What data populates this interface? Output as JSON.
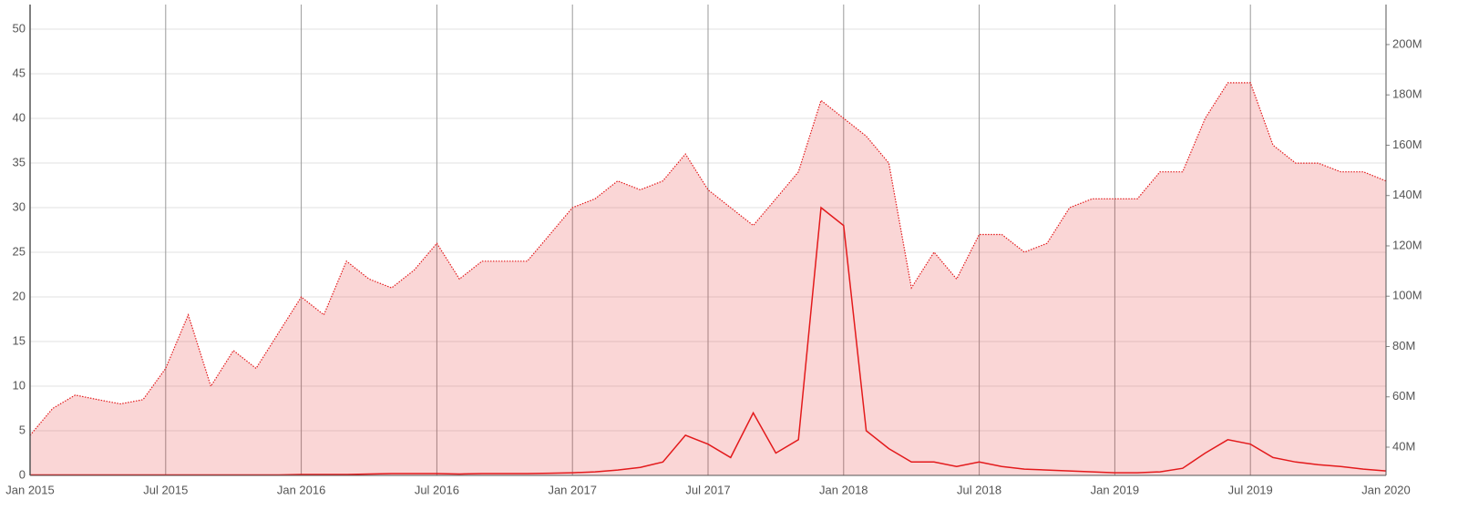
{
  "chart_data": {
    "type": "line",
    "x": [
      "2015-01",
      "2015-02",
      "2015-03",
      "2015-04",
      "2015-05",
      "2015-06",
      "2015-07",
      "2015-08",
      "2015-09",
      "2015-10",
      "2015-11",
      "2015-12",
      "2016-01",
      "2016-02",
      "2016-03",
      "2016-04",
      "2016-05",
      "2016-06",
      "2016-07",
      "2016-08",
      "2016-09",
      "2016-10",
      "2016-11",
      "2016-12",
      "2017-01",
      "2017-02",
      "2017-03",
      "2017-04",
      "2017-05",
      "2017-06",
      "2017-07",
      "2017-08",
      "2017-09",
      "2017-10",
      "2017-11",
      "2017-12",
      "2018-01",
      "2018-02",
      "2018-03",
      "2018-04",
      "2018-05",
      "2018-06",
      "2018-07",
      "2018-08",
      "2018-09",
      "2018-10",
      "2018-11",
      "2018-12",
      "2019-01",
      "2019-02",
      "2019-03",
      "2019-04",
      "2019-05",
      "2019-06",
      "2019-07",
      "2019-08",
      "2019-09",
      "2019-10",
      "2019-11",
      "2019-12",
      "2020-01"
    ],
    "series": [
      {
        "color": "#e31a1c",
        "style": "area",
        "axis": "y2",
        "values": [
          44700000,
          55400000,
          60700000,
          58900000,
          57200000,
          58900000,
          71300000,
          92600000,
          64200000,
          78400000,
          71300000,
          85500000,
          99700000,
          92600000,
          113900000,
          106800000,
          103300000,
          110400000,
          121000000,
          106800000,
          113900000,
          113900000,
          113900000,
          124500000,
          135200000,
          138700000,
          145800000,
          142300000,
          145800000,
          156500000,
          142300000,
          135200000,
          128100000,
          138700000,
          149400000,
          177800000,
          170700000,
          163600000,
          152900000,
          103300000,
          117500000,
          106800000,
          124500000,
          124500000,
          117500000,
          121000000,
          135200000,
          138700000,
          138700000,
          138700000,
          149400000,
          149400000,
          170700000,
          184800000,
          184800000,
          160000000,
          152900000,
          152900000,
          149400000,
          149400000,
          145800000
        ]
      },
      {
        "color": "#e31a1c",
        "style": "line",
        "values": [
          0.05,
          0.05,
          0.05,
          0.05,
          0.05,
          0.05,
          0.05,
          0.05,
          0.05,
          0.05,
          0.05,
          0.05,
          0.1,
          0.1,
          0.1,
          0.15,
          0.2,
          0.2,
          0.2,
          0.15,
          0.2,
          0.2,
          0.2,
          0.25,
          0.3,
          0.4,
          0.6,
          0.9,
          1.5,
          4.5,
          3.5,
          2.0,
          7.0,
          2.5,
          4.0,
          30,
          28,
          5,
          3,
          1.5,
          1.5,
          1,
          1.5,
          1,
          0.7,
          0.6,
          0.5,
          0.4,
          0.3,
          0.3,
          0.4,
          0.8,
          2.5,
          4.0,
          3.5,
          2,
          1.5,
          1.2,
          1,
          0.7,
          0.5
        ]
      }
    ],
    "xlim": [
      "2015-01",
      "2020-01"
    ],
    "xticks": [
      {
        "value": "2015-01",
        "label": "Jan 2015"
      },
      {
        "value": "2015-07",
        "label": "Jul 2015"
      },
      {
        "value": "2016-01",
        "label": "Jan 2016"
      },
      {
        "value": "2016-07",
        "label": "Jul 2016"
      },
      {
        "value": "2017-01",
        "label": "Jan 2017"
      },
      {
        "value": "2017-07",
        "label": "Jul 2017"
      },
      {
        "value": "2018-01",
        "label": "Jan 2018"
      },
      {
        "value": "2018-07",
        "label": "Jul 2018"
      },
      {
        "value": "2019-01",
        "label": "Jan 2019"
      },
      {
        "value": "2019-07",
        "label": "Jul 2019"
      },
      {
        "value": "2020-01",
        "label": "Jan 2020"
      }
    ],
    "ylim": [
      0,
      52.76
    ],
    "yticks": [
      0,
      5,
      10,
      15,
      20,
      25,
      30,
      35,
      40,
      45,
      50
    ],
    "y2lim": [
      28780000,
      215900000
    ],
    "y2ticks": [
      {
        "value": 40000000,
        "label": "40M"
      },
      {
        "value": 60000000,
        "label": "60M"
      },
      {
        "value": 80000000,
        "label": "80M"
      },
      {
        "value": 100000000,
        "label": "100M"
      },
      {
        "value": 120000000,
        "label": "120M"
      },
      {
        "value": 140000000,
        "label": "140M"
      },
      {
        "value": 160000000,
        "label": "160M"
      },
      {
        "value": 180000000,
        "label": "180M"
      },
      {
        "value": 200000000,
        "label": "200M"
      }
    ],
    "grid": true
  }
}
